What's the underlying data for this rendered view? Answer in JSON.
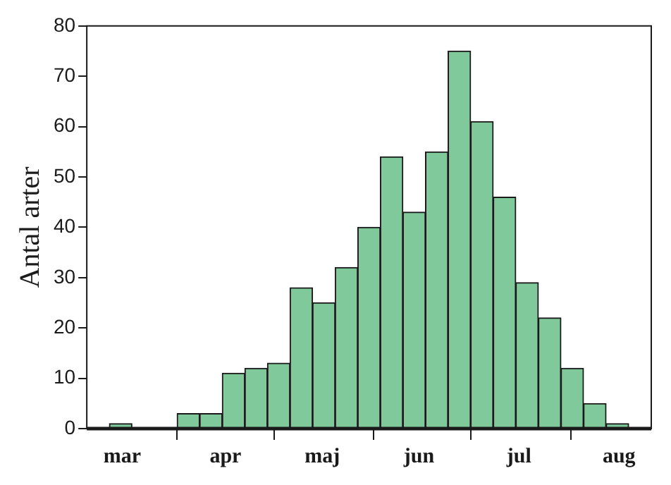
{
  "chart_data": {
    "type": "histogram",
    "ylabel": "Antal arter",
    "bins": [
      "--03-04",
      "--03-11",
      "--03-18",
      "--03-25",
      "--04-01",
      "--04-08",
      "--04-15",
      "--04-22",
      "--04-29",
      "--05-06",
      "--05-13",
      "--05-20",
      "--05-27",
      "--06-03",
      "--06-10",
      "--06-17",
      "--06-24",
      "--07-01",
      "--07-08",
      "--07-15",
      "--07-22",
      "--07-29",
      "--08-05",
      "--08-12",
      "--08-19",
      "--08-26"
    ],
    "values": [
      0,
      1,
      0,
      0,
      3,
      3,
      11,
      12,
      13,
      28,
      25,
      32,
      40,
      54,
      43,
      55,
      75,
      61,
      46,
      29,
      22,
      12,
      5,
      1,
      0
    ],
    "color": "#7fc99b",
    "xlim": [
      "--03-04",
      "--08-26"
    ],
    "xticks": [
      {
        "value": "--03-15",
        "label": "mar"
      },
      {
        "value": "--04-01",
        "label": null
      },
      {
        "value": "--04-16",
        "label": "apr"
      },
      {
        "value": "--05-01",
        "label": null
      },
      {
        "value": "--05-16",
        "label": "maj"
      },
      {
        "value": "--06-01",
        "label": null
      },
      {
        "value": "--06-15",
        "label": "jun"
      },
      {
        "value": "--07-01",
        "label": null
      },
      {
        "value": "--07-16",
        "label": "jul"
      },
      {
        "value": "--08-01",
        "label": null
      },
      {
        "value": "--08-16",
        "label": "aug"
      }
    ],
    "ylim": [
      0,
      80
    ],
    "yticks": [
      0,
      10,
      20,
      30,
      40,
      50,
      60,
      70,
      80
    ],
    "grid": false,
    "legend": false
  }
}
